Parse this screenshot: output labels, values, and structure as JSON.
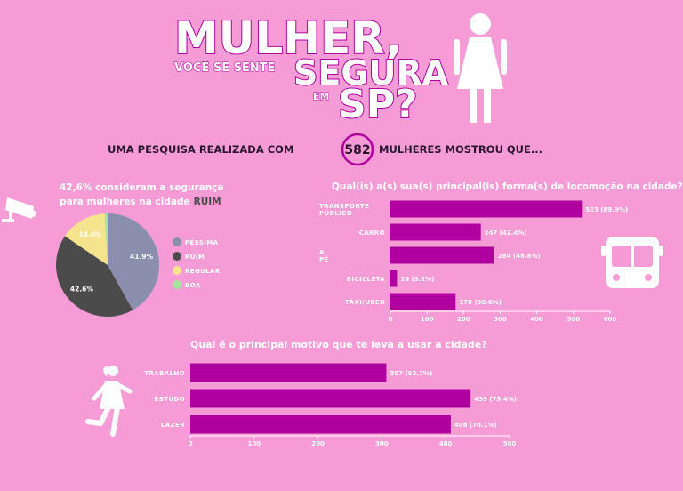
{
  "header": {
    "title_line1": "MULHER,",
    "title_voce": "VOCÊ SE SENTE",
    "title_segura": "SEGURA",
    "title_em": "EM",
    "title_sp": "SP?",
    "headline_pre": "UMA PESQUISA REALIZADA COM",
    "headline_number": "582",
    "headline_post": "MULHERES MOSTROU QUE..."
  },
  "colors": {
    "background": "#f59cd6",
    "bar": "#b0009e",
    "text_dark": "#2a1530",
    "pessima": "#8b8fae",
    "ruim": "#4b4b4b",
    "regular": "#f6e38d",
    "boa": "#a3e59a"
  },
  "icons": [
    "woman-icon",
    "camera-icon",
    "bus-icon",
    "running-woman-icon"
  ],
  "chart_data": [
    {
      "type": "pie",
      "title_pre": "42,6% consideram a segurança",
      "title_line2_pre": "para mulheres na cidade",
      "title_highlight": "RUIM",
      "legend_position": "right",
      "slices": [
        {
          "name": "PÉSSIMA",
          "value": 41.9,
          "label": "41.9%",
          "color": "#8b8fae"
        },
        {
          "name": "RUIM",
          "value": 42.6,
          "label": "42.6%",
          "color": "#4b4b4b"
        },
        {
          "name": "REGULAR",
          "value": 14.6,
          "label": "14.6%",
          "color": "#f6e38d"
        },
        {
          "name": "BOA",
          "value": 0.9,
          "label": "",
          "color": "#a3e59a"
        }
      ]
    },
    {
      "type": "bar",
      "orientation": "horizontal",
      "title": "Qual(is) a(s) sua(s) principal(is) forma(s) de locomoção na cidade?",
      "categories": [
        "TRANSPORTE PÚBLICO",
        "CARRO",
        "A PÉ",
        "BICICLETA",
        "TÁXI/UBER"
      ],
      "values": [
        523,
        247,
        284,
        18,
        178
      ],
      "labels": [
        "523 (89.9%)",
        "247 (42.4%)",
        "284 (48.8%)",
        "18 (3.1%)",
        "178 (30.6%)"
      ],
      "xlim": [
        0,
        600
      ],
      "xticks": [
        "0",
        "100",
        "200",
        "300",
        "400",
        "500",
        "600"
      ],
      "grid": false
    },
    {
      "type": "bar",
      "orientation": "horizontal",
      "title": "Qual é o principal motivo que te leva a usar a cidade?",
      "categories": [
        "TRABALHO",
        "ESTUDO",
        "LAZER"
      ],
      "values": [
        307,
        439,
        408
      ],
      "labels": [
        "307 (52.7%)",
        "439 (75.4%)",
        "408 (70.1%)"
      ],
      "xlim": [
        0,
        500
      ],
      "xticks": [
        "0",
        "100",
        "200",
        "300",
        "400",
        "500"
      ],
      "grid": false
    }
  ]
}
